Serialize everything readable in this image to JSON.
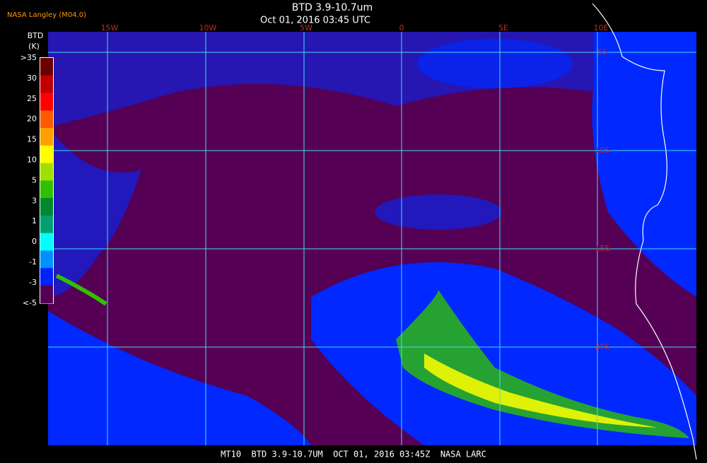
{
  "header": {
    "source": "NASA Langley (M04.0)",
    "title": "BTD 3.9-10.7um",
    "time": "Oct 01, 2016 03:45 UTC"
  },
  "colorbar": {
    "title": "BTD",
    "unit": "(K)",
    "labels": [
      ">35",
      "30",
      "25",
      "20",
      "15",
      "10",
      "5",
      "3",
      "1",
      "0",
      "-1",
      "-3",
      "<-5"
    ],
    "colors": [
      "#6a0000",
      "#c00000",
      "#ff0000",
      "#ff5a00",
      "#ffa000",
      "#ffff00",
      "#a0e000",
      "#30c000",
      "#008830",
      "#00a070",
      "#00ffff",
      "#0090ff",
      "#0020ff",
      "#550055"
    ]
  },
  "longitudes": [
    "15W",
    "10W",
    "5W",
    "0",
    "5E",
    "10E"
  ],
  "latitudes": [
    "5S",
    "10S",
    "15S",
    "20S"
  ],
  "footer": "MT10  BTD 3.9-10.7UM  OCT 01, 2016 03:45Z  NASA LARC"
}
